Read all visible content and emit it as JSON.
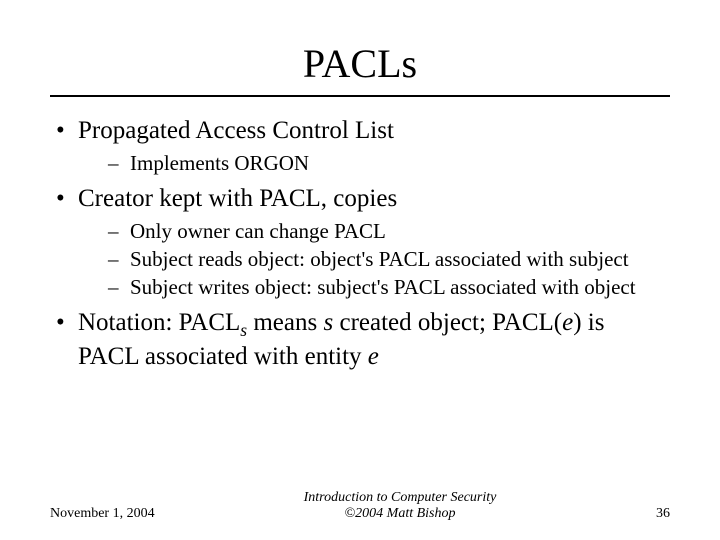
{
  "title": "PACLs",
  "bullets": {
    "b1": "Propagated Access Control List",
    "b1_1": "Implements ORGON",
    "b2": "Creator kept with PACL, copies",
    "b2_1": "Only owner can change PACL",
    "b2_2": "Subject reads object: object's PACL associated with subject",
    "b2_3": "Subject writes object: subject's PACL associated with object",
    "b3_pre": "Notation: PACL",
    "b3_sub1": "s",
    "b3_mid1": " means ",
    "b3_ital1": "s",
    "b3_mid2": " created object; PACL(",
    "b3_ital2": "e",
    "b3_mid3": ") is PACL associated with entity ",
    "b3_ital3": "e"
  },
  "footer": {
    "date": "November 1, 2004",
    "center_line1": "Introduction to Computer Security",
    "center_line2": "©2004 Matt Bishop",
    "page": "36"
  },
  "style": {
    "background_color": "#ffffff",
    "text_color": "#000000",
    "title_fontsize": 40,
    "body_fontsize": 25,
    "sub_fontsize": 21,
    "footer_fontsize": 14,
    "rule_color": "#000000"
  }
}
